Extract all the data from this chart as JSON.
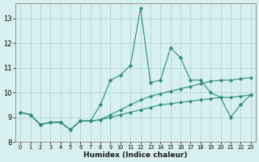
{
  "xlabel": "Humidex (Indice chaleur)",
  "x": [
    0,
    1,
    2,
    3,
    4,
    5,
    6,
    7,
    8,
    9,
    10,
    11,
    12,
    13,
    14,
    15,
    16,
    17,
    18,
    19,
    20,
    21,
    22,
    23
  ],
  "line1": [
    9.2,
    9.1,
    8.7,
    8.8,
    8.8,
    8.5,
    8.85,
    8.85,
    9.5,
    10.5,
    10.7,
    11.1,
    13.4,
    10.4,
    10.5,
    11.8,
    11.4,
    10.5,
    10.5,
    10.0,
    9.8,
    9.0,
    9.5,
    9.9
  ],
  "line2": [
    9.2,
    9.1,
    8.7,
    8.8,
    8.8,
    8.5,
    8.85,
    8.85,
    8.9,
    9.1,
    9.3,
    9.5,
    9.7,
    9.85,
    9.95,
    10.05,
    10.15,
    10.25,
    10.35,
    10.45,
    10.5,
    10.5,
    10.55,
    10.6
  ],
  "line3": [
    9.2,
    9.1,
    8.7,
    8.8,
    8.8,
    8.5,
    8.85,
    8.85,
    8.9,
    9.0,
    9.1,
    9.2,
    9.3,
    9.4,
    9.5,
    9.55,
    9.6,
    9.65,
    9.7,
    9.75,
    9.8,
    9.8,
    9.85,
    9.9
  ],
  "line_color": "#2e8b7a",
  "bg_color": "#d8f0f0",
  "grid_color": "#b8dada",
  "ylim": [
    8.2,
    13.6
  ],
  "yticks": [
    8,
    9,
    10,
    11,
    12,
    13
  ],
  "xlim": [
    -0.5,
    23.5
  ]
}
